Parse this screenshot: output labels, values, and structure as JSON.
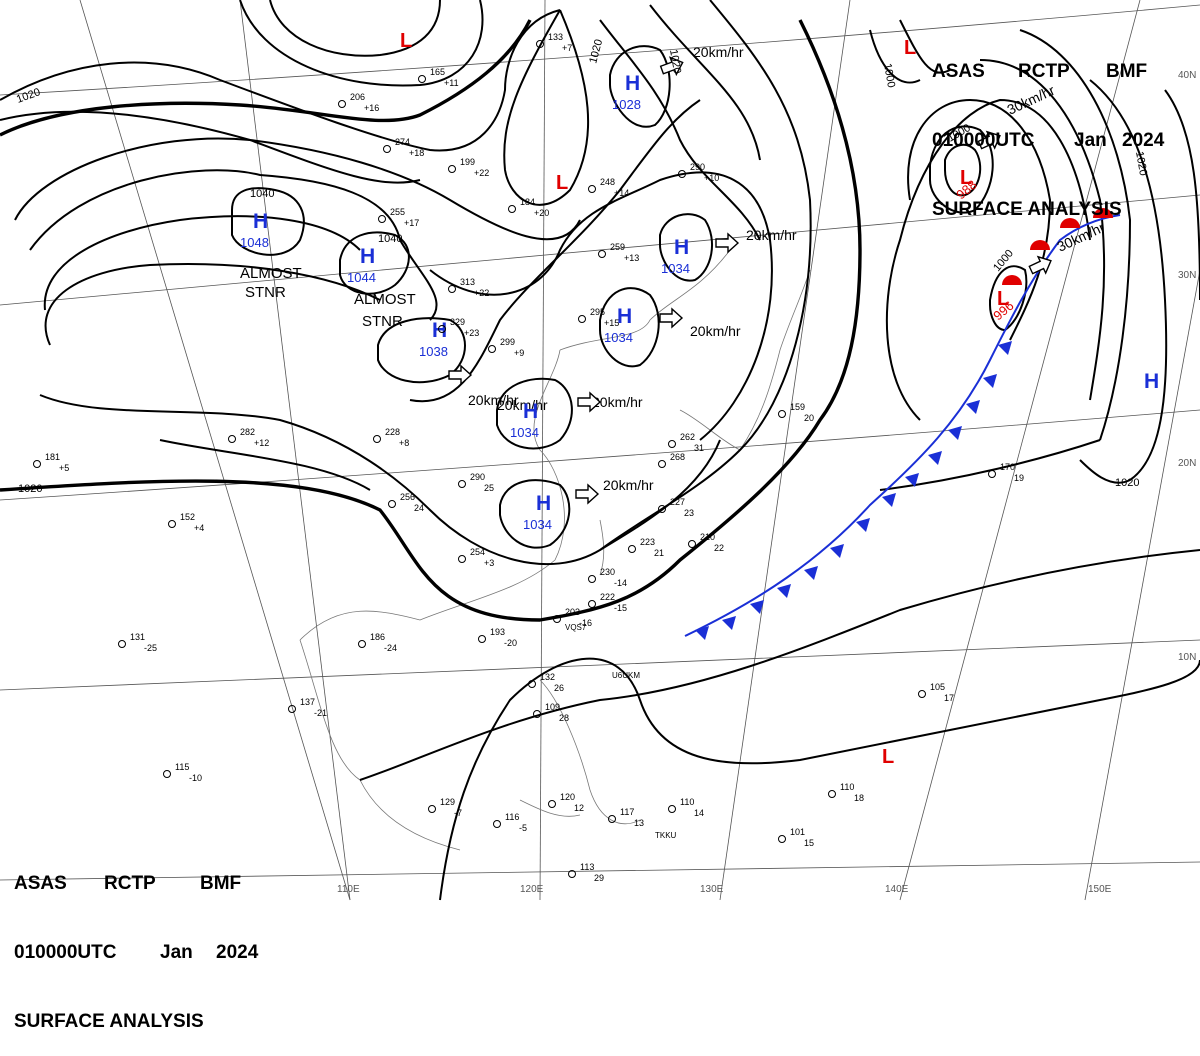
{
  "header": {
    "agency": "ASAS",
    "station": "RCTP",
    "office": "BMF",
    "datetime": "010000UTC",
    "month": "Jan",
    "year": "2024",
    "product": "SURFACE ANALYSIS"
  },
  "lat_labels": [
    "40N",
    "30N",
    "20N",
    "10N"
  ],
  "lon_labels": [
    "110E",
    "120E",
    "130E",
    "140E",
    "150E"
  ],
  "colors": {
    "high": "#1a2fd6",
    "low": "#e00000",
    "isobar": "#000000",
    "grid": "#555555",
    "coast": "#777777"
  },
  "highs": [
    {
      "label": "H",
      "pressure": "1048"
    },
    {
      "label": "H",
      "pressure": "1044"
    },
    {
      "label": "H",
      "pressure": "1038"
    },
    {
      "label": "H",
      "pressure": "1028"
    },
    {
      "label": "H",
      "pressure": "1034"
    },
    {
      "label": "H",
      "pressure": "1034"
    },
    {
      "label": "H",
      "pressure": "1034"
    },
    {
      "label": "H",
      "pressure": "1034"
    },
    {
      "label": "H",
      "pressure": ""
    }
  ],
  "lows": [
    {
      "label": "L",
      "pressure": ""
    },
    {
      "label": "L",
      "pressure": ""
    },
    {
      "label": "L",
      "pressure": ""
    },
    {
      "label": "L",
      "pressure": "988"
    },
    {
      "label": "L",
      "pressure": "996"
    },
    {
      "label": "L",
      "pressure": ""
    }
  ],
  "isobar_labels": [
    "1020",
    "1020",
    "1020",
    "1020",
    "1040",
    "1040",
    "1000",
    "1000",
    "1020",
    "1020",
    "1000"
  ],
  "motions": [
    "20km/hr",
    "20km/hr",
    "20km/hr",
    "20km/hr",
    "20km/hr",
    "20km/hr",
    "20km/hr",
    "30km/hr",
    "30km/hr"
  ],
  "remarks": [
    "ALMOST",
    "STNR",
    "ALMOST",
    "STNR"
  ],
  "station_values": [
    "133",
    "165",
    "206",
    "274",
    "199",
    "184",
    "248",
    "290",
    "259",
    "295",
    "255",
    "313",
    "329",
    "299",
    "282",
    "228",
    "181",
    "152",
    "254",
    "230",
    "222",
    "203",
    "193",
    "186",
    "131",
    "137",
    "115",
    "129",
    "116",
    "120",
    "117",
    "110",
    "101",
    "105",
    "110",
    "170",
    "159",
    "223",
    "210",
    "227",
    "256",
    "290",
    "132",
    "109",
    "113",
    "262",
    "268",
    "+7",
    "+11",
    "+16",
    "+18",
    "+22",
    "+20",
    "+14",
    "+10",
    "+13",
    "+15",
    "+17",
    "+22",
    "+23",
    "+9",
    "+12",
    "+8",
    "+5",
    "+4",
    "+3",
    "-14",
    "-15",
    "-16",
    "-20",
    "-24",
    "-25",
    "-21",
    "-10",
    "-7",
    "-5",
    "12",
    "13",
    "14",
    "15",
    "17",
    "18",
    "19",
    "20",
    "21",
    "22",
    "23",
    "24",
    "25",
    "26",
    "28",
    "29",
    "31"
  ],
  "ship_ids": [
    "U6UKM",
    "VQS7",
    "TKKU"
  ]
}
